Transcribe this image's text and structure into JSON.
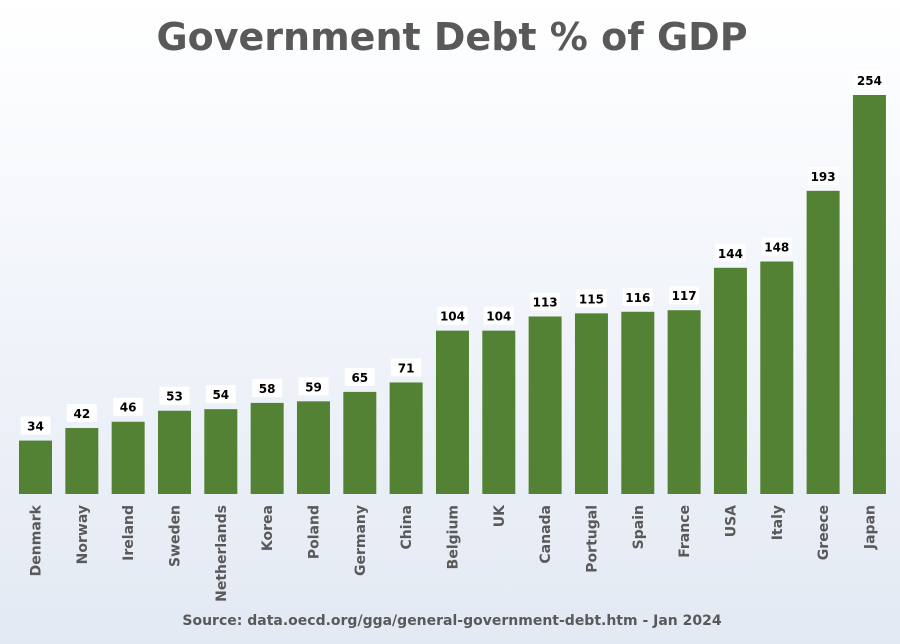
{
  "chart_data": {
    "type": "bar",
    "title": "Government Debt % of GDP",
    "source": "Source: data.oecd.org/gga/general-government-debt.htm - Jan 2024",
    "categories": [
      "Denmark",
      "Norway",
      "Ireland",
      "Sweden",
      "Netherlands",
      "Korea",
      "Poland",
      "Germany",
      "China",
      "Belgium",
      "UK",
      "Canada",
      "Portugal",
      "Spain",
      "France",
      "USA",
      "Italy",
      "Greece",
      "Japan"
    ],
    "values": [
      34,
      42,
      46,
      53,
      54,
      58,
      59,
      65,
      71,
      104,
      104,
      113,
      115,
      116,
      117,
      144,
      148,
      193,
      254
    ],
    "xlabel": "",
    "ylabel": "",
    "ylim": [
      0,
      254
    ],
    "grid": false,
    "data_labels": true,
    "colors": {
      "bar": "#548235",
      "label_box": "#ffffff",
      "text": "#595959"
    }
  }
}
